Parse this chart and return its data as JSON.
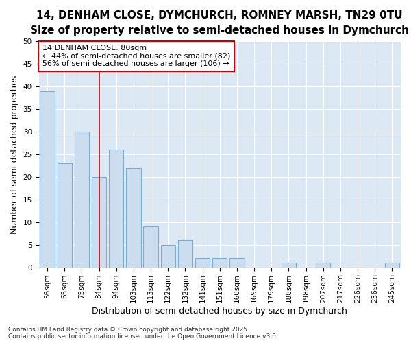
{
  "title_line1": "14, DENHAM CLOSE, DYMCHURCH, ROMNEY MARSH, TN29 0TU",
  "title_line2": "Size of property relative to semi-detached houses in Dymchurch",
  "xlabel": "Distribution of semi-detached houses by size in Dymchurch",
  "ylabel": "Number of semi-detached properties",
  "categories": [
    "56sqm",
    "65sqm",
    "75sqm",
    "84sqm",
    "94sqm",
    "103sqm",
    "113sqm",
    "122sqm",
    "132sqm",
    "141sqm",
    "151sqm",
    "160sqm",
    "169sqm",
    "179sqm",
    "188sqm",
    "198sqm",
    "207sqm",
    "217sqm",
    "226sqm",
    "236sqm",
    "245sqm"
  ],
  "values": [
    39,
    23,
    30,
    20,
    26,
    22,
    9,
    5,
    6,
    2,
    2,
    2,
    0,
    0,
    1,
    0,
    1,
    0,
    0,
    0,
    1
  ],
  "bar_color": "#ccddf0",
  "bar_edge_color": "#7aafd4",
  "vline_x": 3,
  "vline_color": "#cc0000",
  "annotation_line1": "14 DENHAM CLOSE: 80sqm",
  "annotation_line2": "← 44% of semi-detached houses are smaller (82)",
  "annotation_line3": "56% of semi-detached houses are larger (106) →",
  "footnote": "Contains HM Land Registry data © Crown copyright and database right 2025.\nContains public sector information licensed under the Open Government Licence v3.0.",
  "ylim": [
    0,
    50
  ],
  "yticks": [
    0,
    5,
    10,
    15,
    20,
    25,
    30,
    35,
    40,
    45,
    50
  ],
  "fig_bg": "#ffffff",
  "plot_bg": "#dce9f5",
  "grid_color": "#ffffff",
  "title_fontsize": 11,
  "subtitle_fontsize": 9.5,
  "axis_label_fontsize": 9,
  "tick_fontsize": 7.5,
  "annotation_fontsize": 8,
  "footnote_fontsize": 6.5
}
